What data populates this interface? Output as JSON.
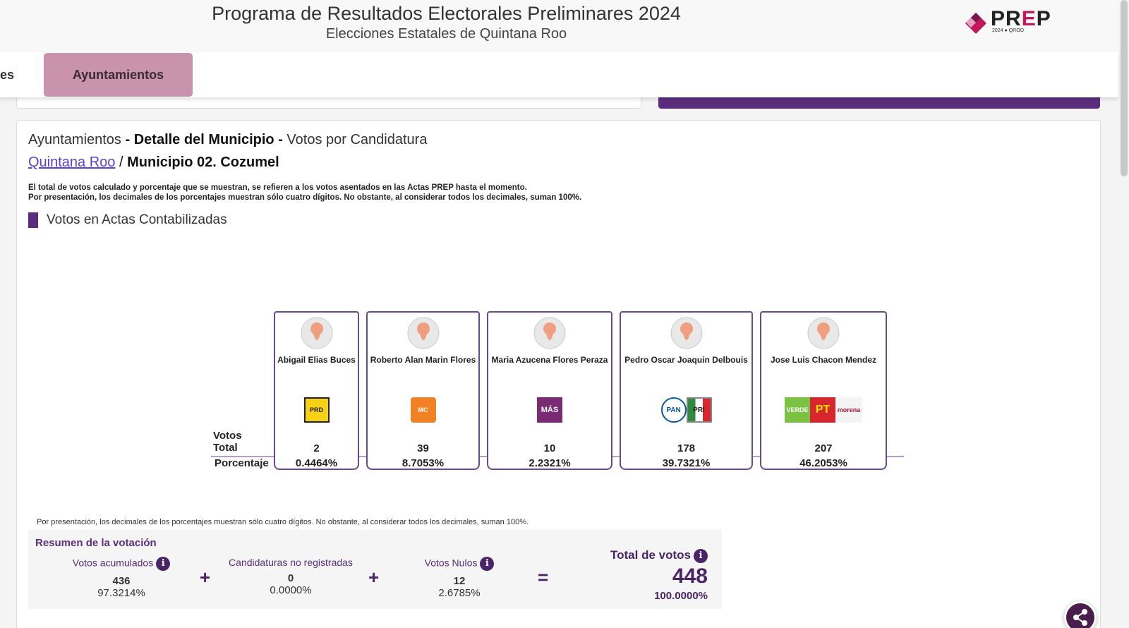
{
  "header": {
    "title": "Programa de Resultados Electorales Preliminares 2024",
    "subtitle": "Elecciones Estatales de Quintana Roo",
    "logo_text": "PREP",
    "logo_sub": "2024 ● QROO"
  },
  "tabs": {
    "cut_label": "es",
    "active_label": "Ayuntamientos"
  },
  "content": {
    "heading_prefix": "Ayuntamientos",
    "heading_dash1": " - ",
    "heading_bold": "Detalle del Municipio",
    "heading_dash2": " - ",
    "heading_suffix": "Votos por Candidatura",
    "breadcrumb_link": "Quintana Roo",
    "breadcrumb_sep": " / ",
    "breadcrumb_current": "Municipio 02. Cozumel",
    "notice_line1": "El total de votos calculado y porcentaje que se muestran, se refieren a los votos asentados en las Actas PREP hasta el momento.",
    "notice_line2": "Por presentación, los decimales de los porcentajes muestran sólo cuatro dígitos. No obstante, al considerar todos los decimales, suman 100%.",
    "section_title": "Votos en Actas Contabilizadas",
    "row_votos": "Votos",
    "row_total": "Total",
    "row_pct": "Porcentaje"
  },
  "candidates": [
    {
      "name": "Abigail Elias Buces",
      "parties": [
        "PRD"
      ],
      "votes": "2",
      "pct": "0.4464%"
    },
    {
      "name": "Roberto Alan Marin Flores",
      "parties": [
        "MC"
      ],
      "votes": "39",
      "pct": "8.7053%"
    },
    {
      "name": "Maria Azucena Flores Peraza",
      "parties": [
        "MÁS"
      ],
      "votes": "10",
      "pct": "2.2321%"
    },
    {
      "name": "Pedro Oscar Joaquin Delbouis",
      "parties": [
        "PAN",
        "PRI"
      ],
      "votes": "178",
      "pct": "39.7321%"
    },
    {
      "name": "Jose Luis Chacon Mendez",
      "parties": [
        "VERDE",
        "PT",
        "morena"
      ],
      "votes": "207",
      "pct": "46.2053%"
    }
  ],
  "summary": {
    "footnote": "Por presentación, los decimales de los porcentajes muestran sólo cuatro dígitos. No obstante, al considerar todos los decimales, suman 100%.",
    "title": "Resumen de la votación",
    "accum_label": "Votos acumulados",
    "accum_value": "436",
    "accum_pct": "97.3214%",
    "noreg_label": "Candidaturas no registradas",
    "noreg_value": "0",
    "noreg_pct": "0.0000%",
    "nulos_label": "Votos Nulos",
    "nulos_value": "12",
    "nulos_pct": "2.6785%",
    "total_label": "Total de votos",
    "total_value": "448",
    "total_pct": "100.0000%",
    "plus": "+",
    "equals": "=",
    "info_glyph": "i"
  },
  "colors": {
    "accent": "#5b2e7d",
    "tab_active": "#c992ad",
    "link": "#5c3fd6"
  }
}
